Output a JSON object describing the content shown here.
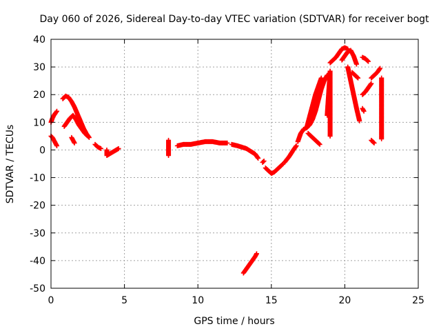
{
  "chart_data": {
    "type": "scatter",
    "title": "Day 060 of 2026, Sidereal Day-to-day VTEC variation (SDTVAR) for receiver bogt",
    "xlabel": "GPS time / hours",
    "ylabel": "SDTVAR / TECUs",
    "xlim": [
      0,
      25
    ],
    "ylim": [
      -50,
      40
    ],
    "xticks": [
      0,
      5,
      10,
      15,
      20,
      25
    ],
    "yticks": [
      -50,
      -40,
      -30,
      -20,
      -10,
      0,
      10,
      20,
      30,
      40
    ],
    "xtick_labels": [
      "0",
      "5",
      "10",
      "15",
      "20",
      "25"
    ],
    "ytick_labels": [
      "-50",
      "-40",
      "-30",
      "-20",
      "-10",
      "0",
      "10",
      "20",
      "30",
      "40"
    ],
    "grid": true,
    "marker": "plus",
    "color": "#ff0000",
    "series": [
      {
        "name": "seg-a",
        "x": [
          0.0,
          0.1,
          0.2,
          0.3,
          0.4
        ],
        "y": [
          10.0,
          11.5,
          12.5,
          13.3,
          14.0
        ]
      },
      {
        "name": "seg-b",
        "x": [
          0.0,
          0.1,
          0.2,
          0.3,
          0.4
        ],
        "y": [
          5.0,
          4.5,
          3.5,
          2.5,
          1.5
        ]
      },
      {
        "name": "seg-c",
        "x": [
          0.8,
          1.0,
          1.2,
          1.4,
          1.6,
          1.8,
          2.0,
          2.2,
          2.4,
          2.6
        ],
        "y": [
          18.5,
          19.5,
          19.0,
          17.5,
          15.5,
          13.0,
          10.5,
          8.0,
          6.0,
          4.5
        ]
      },
      {
        "name": "seg-d",
        "x": [
          0.9,
          1.1,
          1.3,
          1.5,
          1.7,
          1.9,
          2.1,
          2.3,
          2.5
        ],
        "y": [
          8.5,
          10.0,
          11.5,
          12.5,
          11.0,
          9.0,
          7.5,
          6.0,
          5.0
        ]
      },
      {
        "name": "seg-e",
        "x": [
          1.4,
          1.5,
          1.6
        ],
        "y": [
          4.5,
          3.5,
          2.5
        ]
      },
      {
        "name": "seg-f",
        "x": [
          3.0,
          3.2,
          3.4
        ],
        "y": [
          2.0,
          1.0,
          0.5
        ]
      },
      {
        "name": "isolated-1",
        "x": [
          3.8,
          3.8,
          4.6
        ],
        "y": [
          0.0,
          -2.0,
          0.5
        ]
      },
      {
        "name": "isolated-2",
        "x": [
          8.0,
          8.0
        ],
        "y": [
          3.5,
          -2.0
        ]
      },
      {
        "name": "seg-g",
        "x": [
          8.6,
          9.0,
          9.5,
          10.0,
          10.5,
          11.0,
          11.5,
          12.0
        ],
        "y": [
          1.5,
          2.0,
          2.0,
          2.5,
          3.0,
          3.0,
          2.5,
          2.5
        ]
      },
      {
        "name": "seg-h",
        "x": [
          12.3,
          12.7,
          13.0,
          13.3,
          13.6,
          13.9,
          14.1
        ],
        "y": [
          2.0,
          1.5,
          1.0,
          0.5,
          -0.5,
          -1.5,
          -3.0
        ]
      },
      {
        "name": "seg-i",
        "x": [
          13.1,
          13.3,
          13.5,
          13.7,
          13.9,
          14.0
        ],
        "y": [
          -44.5,
          -43.0,
          -41.5,
          -40.0,
          -38.5,
          -37.5
        ]
      },
      {
        "name": "isolated-3",
        "x": [
          14.5,
          14.4
        ],
        "y": [
          -4.0,
          -4.5
        ]
      },
      {
        "name": "seg-j",
        "x": [
          14.6,
          14.8,
          15.0,
          15.2,
          15.4,
          15.6,
          15.8
        ],
        "y": [
          -6.5,
          -7.5,
          -8.5,
          -8.0,
          -7.0,
          -6.0,
          -5.0
        ]
      },
      {
        "name": "seg-k",
        "x": [
          15.9,
          16.2,
          16.5,
          16.7
        ],
        "y": [
          -4.5,
          -2.5,
          0.0,
          1.5
        ]
      },
      {
        "name": "seg-l",
        "x": [
          16.8,
          17.0,
          17.2,
          17.4,
          17.6,
          17.8,
          18.0,
          18.2,
          18.4,
          18.6,
          18.8
        ],
        "y": [
          3.0,
          6.0,
          7.5,
          8.0,
          9.0,
          11.0,
          14.0,
          18.0,
          22.0,
          25.0,
          27.0
        ]
      },
      {
        "name": "seg-m",
        "x": [
          17.4,
          17.6,
          17.8,
          18.0,
          18.2,
          18.4
        ],
        "y": [
          8.0,
          12.0,
          16.0,
          20.0,
          23.0,
          26.0
        ]
      },
      {
        "name": "seg-n",
        "x": [
          17.5,
          17.7,
          17.9,
          18.1,
          18.3
        ],
        "y": [
          6.0,
          5.0,
          4.0,
          3.0,
          2.0
        ]
      },
      {
        "name": "isolated-4",
        "x": [
          18.8,
          19.0,
          19.0,
          19.0
        ],
        "y": [
          12.5,
          28.5,
          6.5,
          5.0
        ]
      },
      {
        "name": "seg-o",
        "x": [
          19.0,
          19.2,
          19.4,
          19.6,
          19.8,
          20.0,
          20.2
        ],
        "y": [
          31.5,
          32.5,
          33.5,
          35.0,
          36.5,
          37.0,
          36.5
        ]
      },
      {
        "name": "seg-p",
        "x": [
          19.8,
          20.0,
          20.2,
          20.4,
          20.6,
          20.8
        ],
        "y": [
          32.5,
          34.0,
          35.5,
          36.0,
          34.0,
          31.0
        ]
      },
      {
        "name": "seg-q",
        "x": [
          20.2,
          20.4,
          20.6,
          20.8,
          21.0
        ],
        "y": [
          30.0,
          25.0,
          20.0,
          15.0,
          10.5
        ]
      },
      {
        "name": "seg-r",
        "x": [
          20.5,
          20.7,
          20.9
        ],
        "y": [
          28.0,
          27.0,
          26.0
        ]
      },
      {
        "name": "seg-s",
        "x": [
          21.2,
          21.4,
          21.6
        ],
        "y": [
          33.5,
          33.0,
          32.0
        ]
      },
      {
        "name": "seg-t",
        "x": [
          21.2,
          21.4,
          21.6,
          21.8
        ],
        "y": [
          20.0,
          21.0,
          22.5,
          24.0
        ]
      },
      {
        "name": "seg-u",
        "x": [
          21.2,
          21.3
        ],
        "y": [
          15.0,
          14.0
        ]
      },
      {
        "name": "seg-v",
        "x": [
          21.8,
          22.0,
          22.2,
          22.4
        ],
        "y": [
          26.0,
          27.0,
          28.0,
          29.5
        ]
      },
      {
        "name": "seg-w",
        "x": [
          21.8,
          21.9,
          22.0
        ],
        "y": [
          3.5,
          3.0,
          2.5
        ]
      },
      {
        "name": "isolated-5",
        "x": [
          22.5,
          22.5
        ],
        "y": [
          26.0,
          4.0
        ]
      }
    ]
  }
}
